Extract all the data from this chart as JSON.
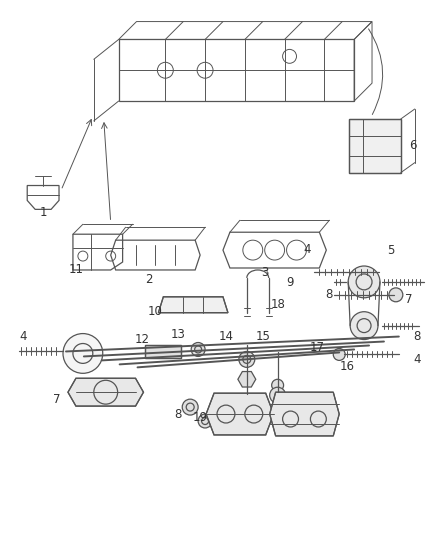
{
  "bg_color": "#ffffff",
  "line_color": "#555555",
  "figsize": [
    4.38,
    5.33
  ],
  "dpi": 100,
  "font_size": 8.5
}
